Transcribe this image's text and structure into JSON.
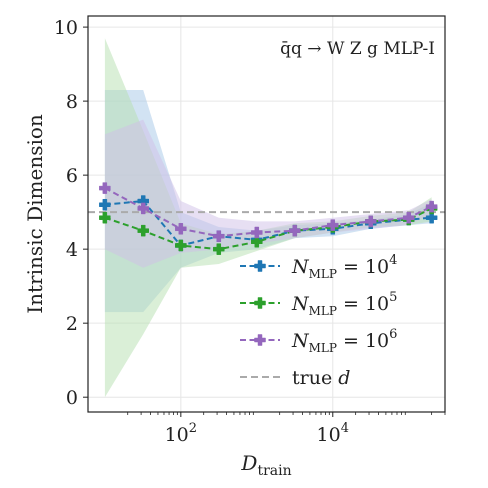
{
  "chart_data": {
    "type": "line",
    "annotation": "q̄q → W Z g MLP-I",
    "xlabel": "D_train",
    "ylabel": "Intrinsic Dimension",
    "xscale": "log",
    "xlim": [
      6,
      300000
    ],
    "ylim": [
      -0.4,
      10.3
    ],
    "xticks": [
      100,
      10000
    ],
    "xtick_labels": [
      {
        "base": "10",
        "exp": "2"
      },
      {
        "base": "10",
        "exp": "4"
      }
    ],
    "yticks": [
      0,
      2,
      4,
      6,
      8,
      10
    ],
    "grid": true,
    "legend_position": "lower-right",
    "x": [
      10,
      32,
      100,
      316,
      1000,
      3162,
      10000,
      31623,
      100000,
      200000
    ],
    "series": [
      {
        "name": "N_MLP = 10^4",
        "label_base": "N",
        "label_sub": "MLP",
        "label_eq": " = 10",
        "label_exp": "4",
        "color": "#1f77b4",
        "band_color": "#a6c8e8",
        "values": [
          5.2,
          5.3,
          4.1,
          4.35,
          4.25,
          4.5,
          4.55,
          4.7,
          4.8,
          4.85
        ],
        "upper": [
          8.3,
          8.3,
          5.0,
          4.6,
          4.5,
          4.65,
          4.7,
          4.8,
          4.95,
          5.25
        ],
        "lower": [
          2.3,
          2.3,
          3.5,
          3.9,
          4.0,
          4.3,
          4.35,
          4.55,
          4.65,
          4.7
        ]
      },
      {
        "name": "N_MLP = 10^5",
        "label_base": "N",
        "label_sub": "MLP",
        "label_eq": " = 10",
        "label_exp": "5",
        "color": "#2ca02c",
        "band_color": "#b5e0b0",
        "values": [
          4.85,
          4.5,
          4.1,
          4.0,
          4.2,
          4.5,
          4.6,
          4.75,
          4.8,
          5.1
        ],
        "upper": [
          9.7,
          7.2,
          4.7,
          4.4,
          4.5,
          4.7,
          4.75,
          4.9,
          5.0,
          5.4
        ],
        "lower": [
          0.0,
          1.7,
          3.5,
          3.6,
          3.95,
          4.3,
          4.45,
          4.6,
          4.65,
          4.75
        ]
      },
      {
        "name": "N_MLP = 10^6",
        "label_base": "N",
        "label_sub": "MLP",
        "label_eq": " = 10",
        "label_exp": "6",
        "color": "#9467bd",
        "band_color": "#cfc0e8",
        "values": [
          5.65,
          5.1,
          4.55,
          4.35,
          4.45,
          4.5,
          4.65,
          4.75,
          4.85,
          5.15
        ],
        "upper": [
          7.1,
          7.5,
          5.3,
          4.85,
          4.75,
          4.75,
          4.85,
          4.95,
          5.05,
          5.35
        ],
        "lower": [
          4.0,
          3.5,
          3.9,
          4.0,
          4.15,
          4.3,
          4.45,
          4.55,
          4.65,
          4.95
        ]
      }
    ],
    "reference_line": {
      "name": "true d",
      "label_text": "true ",
      "label_italic": "d",
      "value": 5,
      "color": "#aaaaaa"
    }
  }
}
